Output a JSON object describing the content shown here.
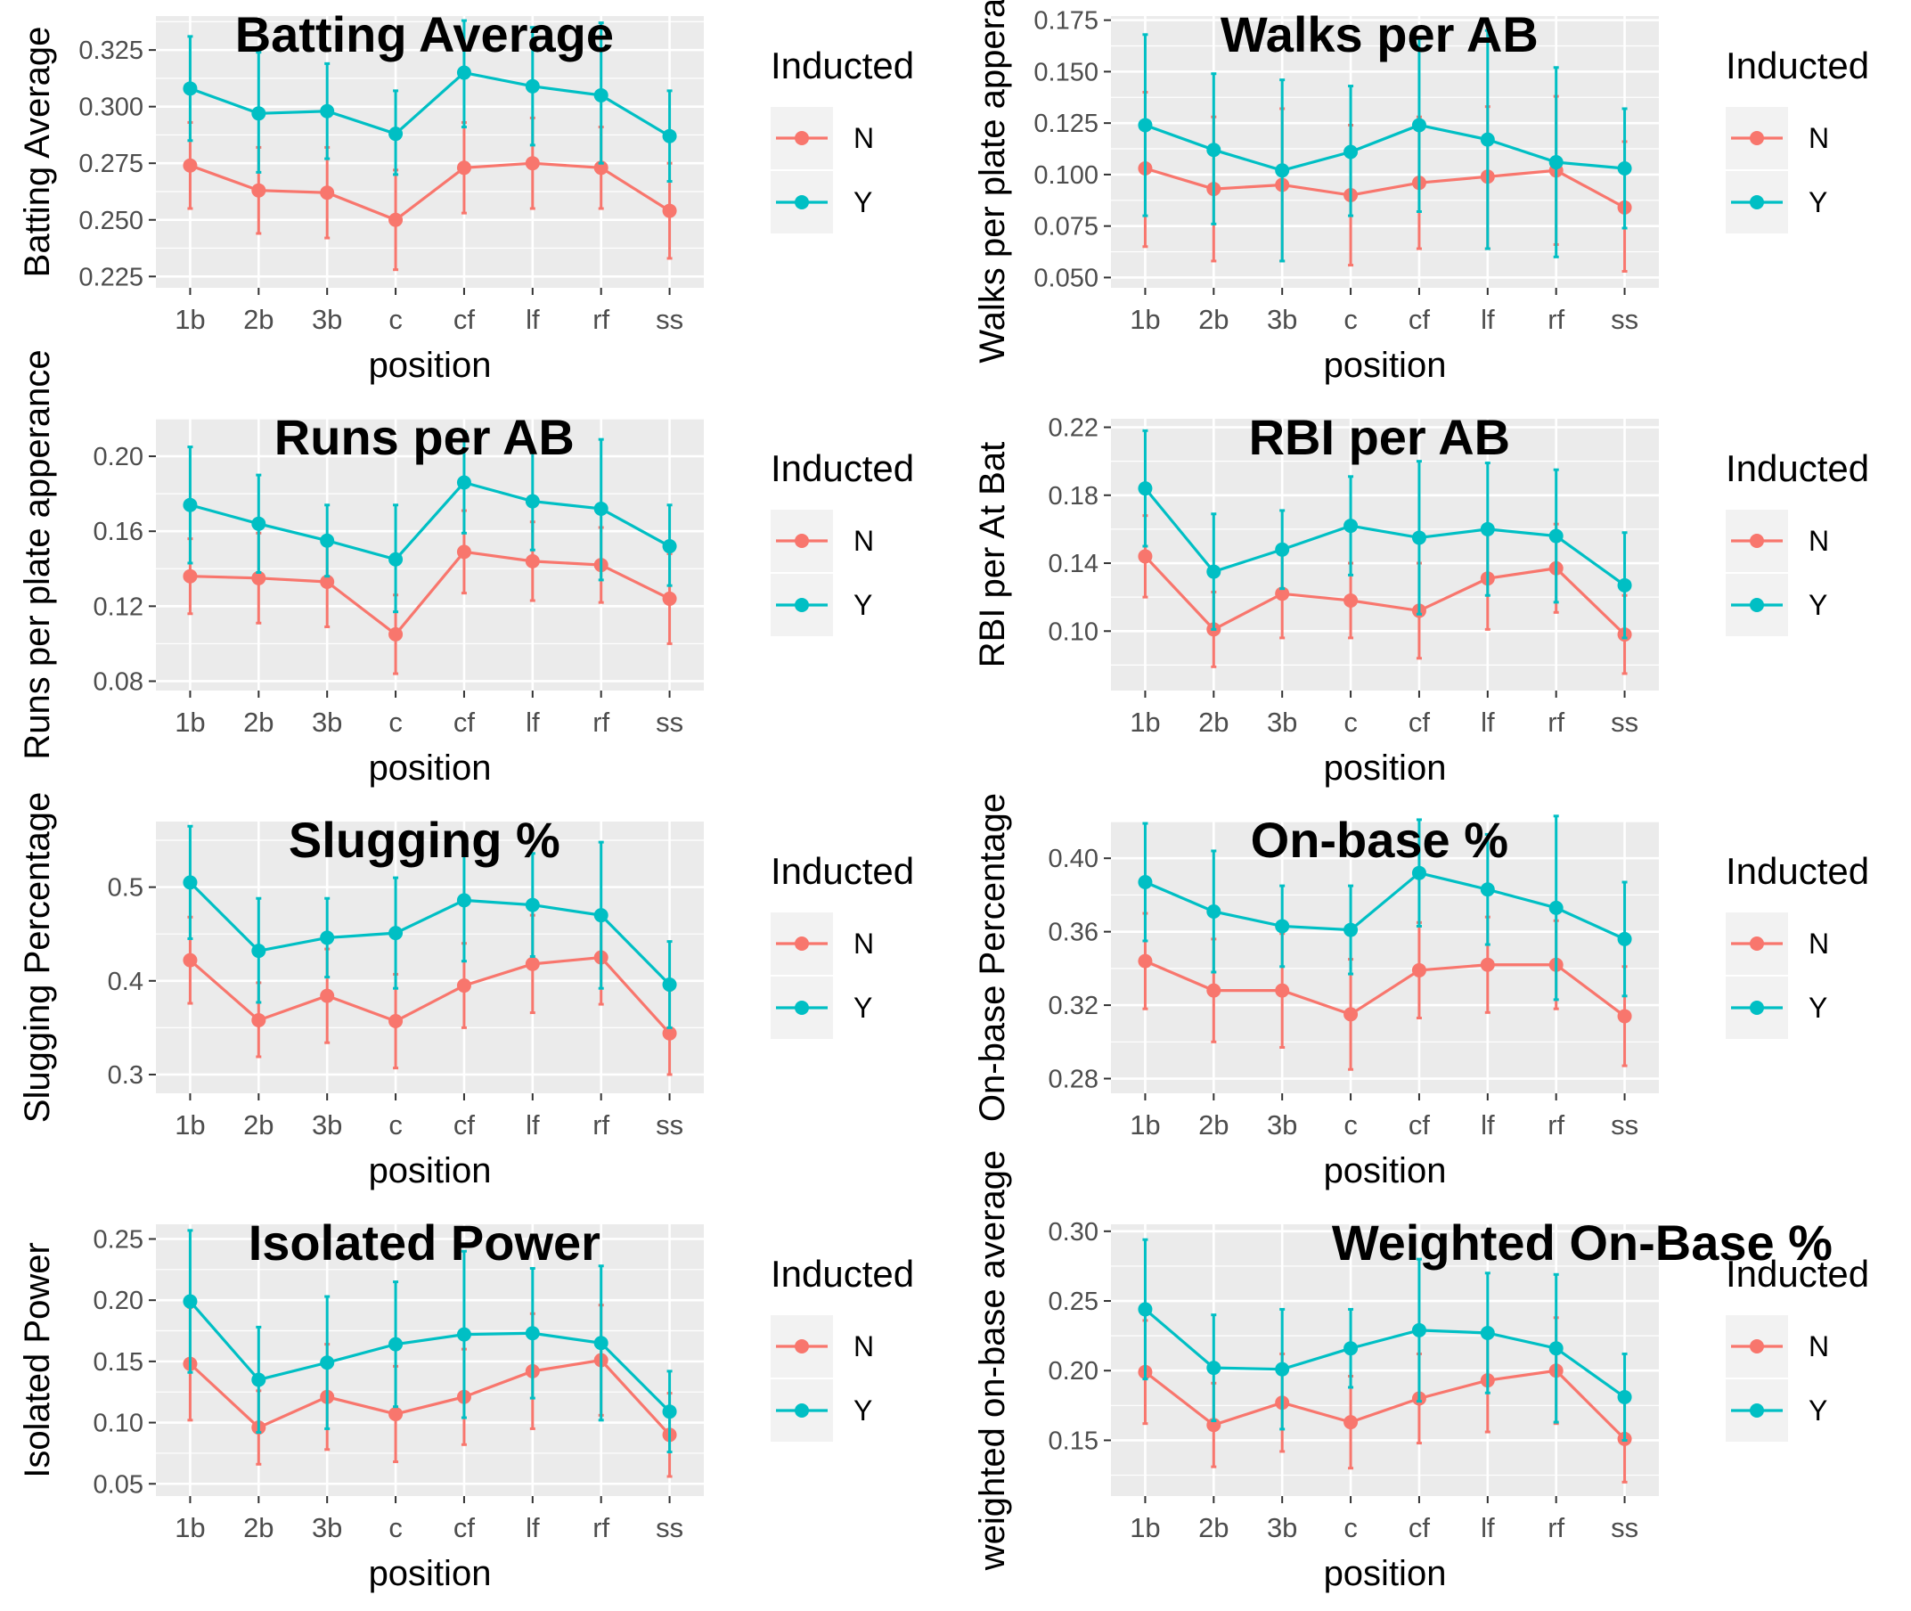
{
  "figure_caption": "",
  "chart_data": [
    {
      "type": "line",
      "title": "Batting Average",
      "xlabel": "position",
      "ylabel": "Batting Average",
      "categories": [
        "1b",
        "2b",
        "3b",
        "c",
        "cf",
        "lf",
        "rf",
        "ss"
      ],
      "ylim": [
        0.22,
        0.34
      ],
      "yticks": [
        "0.225",
        "0.250",
        "0.275",
        "0.300",
        "0.325"
      ],
      "legend": {
        "title": "Inducted",
        "position": "right"
      },
      "colors": {
        "N": "#F8766D",
        "Y": "#00BFC4"
      },
      "grid": true,
      "series": [
        {
          "name": "N",
          "values": [
            0.274,
            0.263,
            0.262,
            0.25,
            0.273,
            0.275,
            0.273,
            0.254
          ],
          "lower": [
            0.255,
            0.244,
            0.242,
            0.228,
            0.253,
            0.255,
            0.255,
            0.233
          ],
          "upper": [
            0.293,
            0.282,
            0.282,
            0.272,
            0.293,
            0.295,
            0.291,
            0.275
          ]
        },
        {
          "name": "Y",
          "values": [
            0.308,
            0.297,
            0.298,
            0.288,
            0.315,
            0.309,
            0.305,
            0.287
          ],
          "lower": [
            0.285,
            0.271,
            0.277,
            0.27,
            0.291,
            0.283,
            0.275,
            0.267
          ],
          "upper": [
            0.331,
            0.324,
            0.319,
            0.307,
            0.338,
            0.335,
            0.337,
            0.307
          ]
        }
      ]
    },
    {
      "type": "line",
      "title": "Walks per AB",
      "xlabel": "position",
      "ylabel": "Walks per plate apperance",
      "categories": [
        "1b",
        "2b",
        "3b",
        "c",
        "cf",
        "lf",
        "rf",
        "ss"
      ],
      "ylim": [
        0.045,
        0.177
      ],
      "yticks": [
        "0.050",
        "0.075",
        "0.100",
        "0.125",
        "0.150",
        "0.175"
      ],
      "legend": {
        "title": "Inducted",
        "position": "right"
      },
      "colors": {
        "N": "#F8766D",
        "Y": "#00BFC4"
      },
      "grid": true,
      "series": [
        {
          "name": "N",
          "values": [
            0.103,
            0.093,
            0.095,
            0.09,
            0.096,
            0.099,
            0.102,
            0.084
          ],
          "lower": [
            0.065,
            0.058,
            0.058,
            0.056,
            0.064,
            0.064,
            0.066,
            0.053
          ],
          "upper": [
            0.14,
            0.128,
            0.132,
            0.124,
            0.128,
            0.133,
            0.138,
            0.116
          ]
        },
        {
          "name": "Y",
          "values": [
            0.124,
            0.112,
            0.102,
            0.111,
            0.124,
            0.117,
            0.106,
            0.103
          ],
          "lower": [
            0.08,
            0.076,
            0.058,
            0.08,
            0.082,
            0.064,
            0.06,
            0.074
          ],
          "upper": [
            0.168,
            0.149,
            0.146,
            0.143,
            0.166,
            0.17,
            0.152,
            0.132
          ]
        }
      ]
    },
    {
      "type": "line",
      "title": "Runs per AB",
      "xlabel": "position",
      "ylabel": "Runs per plate apperance",
      "categories": [
        "1b",
        "2b",
        "3b",
        "c",
        "cf",
        "lf",
        "rf",
        "ss"
      ],
      "ylim": [
        0.075,
        0.22
      ],
      "yticks": [
        "0.08",
        "0.12",
        "0.16",
        "0.20"
      ],
      "legend": {
        "title": "Inducted",
        "position": "right"
      },
      "colors": {
        "N": "#F8766D",
        "Y": "#00BFC4"
      },
      "grid": true,
      "series": [
        {
          "name": "N",
          "values": [
            0.136,
            0.135,
            0.133,
            0.105,
            0.149,
            0.144,
            0.142,
            0.124
          ],
          "lower": [
            0.116,
            0.111,
            0.109,
            0.084,
            0.127,
            0.123,
            0.122,
            0.1
          ],
          "upper": [
            0.156,
            0.159,
            0.157,
            0.126,
            0.171,
            0.165,
            0.162,
            0.148
          ]
        },
        {
          "name": "Y",
          "values": [
            0.174,
            0.164,
            0.155,
            0.145,
            0.186,
            0.176,
            0.172,
            0.152
          ],
          "lower": [
            0.143,
            0.138,
            0.136,
            0.117,
            0.159,
            0.15,
            0.134,
            0.131
          ],
          "upper": [
            0.205,
            0.19,
            0.174,
            0.174,
            0.213,
            0.202,
            0.209,
            0.174
          ]
        }
      ]
    },
    {
      "type": "line",
      "title": "RBI per AB",
      "xlabel": "position",
      "ylabel": "RBI per At Bat",
      "categories": [
        "1b",
        "2b",
        "3b",
        "c",
        "cf",
        "lf",
        "rf",
        "ss"
      ],
      "ylim": [
        0.065,
        0.225
      ],
      "yticks": [
        "0.10",
        "0.14",
        "0.18",
        "0.22"
      ],
      "legend": {
        "title": "Inducted",
        "position": "right"
      },
      "colors": {
        "N": "#F8766D",
        "Y": "#00BFC4"
      },
      "grid": true,
      "series": [
        {
          "name": "N",
          "values": [
            0.144,
            0.101,
            0.122,
            0.118,
            0.112,
            0.131,
            0.137,
            0.098
          ],
          "lower": [
            0.12,
            0.079,
            0.096,
            0.096,
            0.084,
            0.101,
            0.111,
            0.075
          ],
          "upper": [
            0.168,
            0.123,
            0.148,
            0.14,
            0.14,
            0.161,
            0.163,
            0.121
          ]
        },
        {
          "name": "Y",
          "values": [
            0.184,
            0.135,
            0.148,
            0.162,
            0.155,
            0.16,
            0.156,
            0.127
          ],
          "lower": [
            0.15,
            0.101,
            0.125,
            0.133,
            0.11,
            0.121,
            0.117,
            0.096
          ],
          "upper": [
            0.218,
            0.169,
            0.171,
            0.191,
            0.2,
            0.199,
            0.195,
            0.158
          ]
        }
      ]
    },
    {
      "type": "line",
      "title": "Slugging %",
      "xlabel": "position",
      "ylabel": "Slugging Percentage",
      "categories": [
        "1b",
        "2b",
        "3b",
        "c",
        "cf",
        "lf",
        "rf",
        "ss"
      ],
      "ylim": [
        0.28,
        0.57
      ],
      "yticks": [
        "0.3",
        "0.4",
        "0.5"
      ],
      "legend": {
        "title": "Inducted",
        "position": "right"
      },
      "colors": {
        "N": "#F8766D",
        "Y": "#00BFC4"
      },
      "grid": true,
      "series": [
        {
          "name": "N",
          "values": [
            0.422,
            0.358,
            0.384,
            0.357,
            0.395,
            0.418,
            0.425,
            0.344
          ],
          "lower": [
            0.376,
            0.319,
            0.334,
            0.307,
            0.35,
            0.366,
            0.375,
            0.3
          ],
          "upper": [
            0.468,
            0.398,
            0.434,
            0.407,
            0.44,
            0.47,
            0.475,
            0.39
          ]
        },
        {
          "name": "Y",
          "values": [
            0.505,
            0.432,
            0.446,
            0.451,
            0.486,
            0.481,
            0.47,
            0.396
          ],
          "lower": [
            0.445,
            0.377,
            0.404,
            0.392,
            0.421,
            0.426,
            0.392,
            0.35
          ],
          "upper": [
            0.565,
            0.488,
            0.488,
            0.51,
            0.551,
            0.536,
            0.548,
            0.442
          ]
        }
      ]
    },
    {
      "type": "line",
      "title": "On-base %",
      "xlabel": "position",
      "ylabel": "On-base Percentage",
      "categories": [
        "1b",
        "2b",
        "3b",
        "c",
        "cf",
        "lf",
        "rf",
        "ss"
      ],
      "ylim": [
        0.272,
        0.42
      ],
      "yticks": [
        "0.28",
        "0.32",
        "0.36",
        "0.40"
      ],
      "legend": {
        "title": "Inducted",
        "position": "right"
      },
      "colors": {
        "N": "#F8766D",
        "Y": "#00BFC4"
      },
      "grid": true,
      "series": [
        {
          "name": "N",
          "values": [
            0.344,
            0.328,
            0.328,
            0.315,
            0.339,
            0.342,
            0.342,
            0.314
          ],
          "lower": [
            0.318,
            0.3,
            0.297,
            0.285,
            0.313,
            0.316,
            0.318,
            0.287
          ],
          "upper": [
            0.37,
            0.356,
            0.359,
            0.345,
            0.365,
            0.368,
            0.366,
            0.341
          ]
        },
        {
          "name": "Y",
          "values": [
            0.387,
            0.371,
            0.363,
            0.361,
            0.392,
            0.383,
            0.373,
            0.356
          ],
          "lower": [
            0.355,
            0.338,
            0.341,
            0.337,
            0.363,
            0.353,
            0.323,
            0.325
          ],
          "upper": [
            0.419,
            0.404,
            0.385,
            0.385,
            0.421,
            0.413,
            0.423,
            0.387
          ]
        }
      ]
    },
    {
      "type": "line",
      "title": "Isolated Power",
      "xlabel": "position",
      "ylabel": "Isolated Power",
      "categories": [
        "1b",
        "2b",
        "3b",
        "c",
        "cf",
        "lf",
        "rf",
        "ss"
      ],
      "ylim": [
        0.04,
        0.262
      ],
      "yticks": [
        "0.05",
        "0.10",
        "0.15",
        "0.20",
        "0.25"
      ],
      "legend": {
        "title": "Inducted",
        "position": "right"
      },
      "colors": {
        "N": "#F8766D",
        "Y": "#00BFC4"
      },
      "grid": true,
      "series": [
        {
          "name": "N",
          "values": [
            0.148,
            0.096,
            0.121,
            0.107,
            0.121,
            0.142,
            0.151,
            0.09
          ],
          "lower": [
            0.102,
            0.066,
            0.078,
            0.068,
            0.082,
            0.095,
            0.106,
            0.056
          ],
          "upper": [
            0.194,
            0.126,
            0.164,
            0.146,
            0.16,
            0.189,
            0.196,
            0.124
          ]
        },
        {
          "name": "Y",
          "values": [
            0.199,
            0.135,
            0.149,
            0.164,
            0.172,
            0.173,
            0.165,
            0.109
          ],
          "lower": [
            0.141,
            0.092,
            0.095,
            0.113,
            0.104,
            0.12,
            0.102,
            0.076
          ],
          "upper": [
            0.257,
            0.178,
            0.203,
            0.215,
            0.24,
            0.226,
            0.228,
            0.142
          ]
        }
      ]
    },
    {
      "type": "line",
      "title": "Weighted On-Base %",
      "xlabel": "position",
      "ylabel": "weighted on-base average",
      "categories": [
        "1b",
        "2b",
        "3b",
        "c",
        "cf",
        "lf",
        "rf",
        "ss"
      ],
      "ylim": [
        0.11,
        0.305
      ],
      "yticks": [
        "0.15",
        "0.20",
        "0.25",
        "0.30"
      ],
      "legend": {
        "title": "Inducted",
        "position": "right"
      },
      "colors": {
        "N": "#F8766D",
        "Y": "#00BFC4"
      },
      "grid": true,
      "series": [
        {
          "name": "N",
          "values": [
            0.199,
            0.161,
            0.177,
            0.163,
            0.18,
            0.193,
            0.2,
            0.151
          ],
          "lower": [
            0.162,
            0.131,
            0.142,
            0.13,
            0.148,
            0.156,
            0.162,
            0.12
          ],
          "upper": [
            0.236,
            0.191,
            0.212,
            0.196,
            0.212,
            0.23,
            0.238,
            0.182
          ]
        },
        {
          "name": "Y",
          "values": [
            0.244,
            0.202,
            0.201,
            0.216,
            0.229,
            0.227,
            0.216,
            0.181
          ],
          "lower": [
            0.194,
            0.164,
            0.158,
            0.188,
            0.178,
            0.184,
            0.163,
            0.15
          ],
          "upper": [
            0.294,
            0.24,
            0.244,
            0.244,
            0.28,
            0.27,
            0.269,
            0.212
          ]
        }
      ]
    }
  ]
}
